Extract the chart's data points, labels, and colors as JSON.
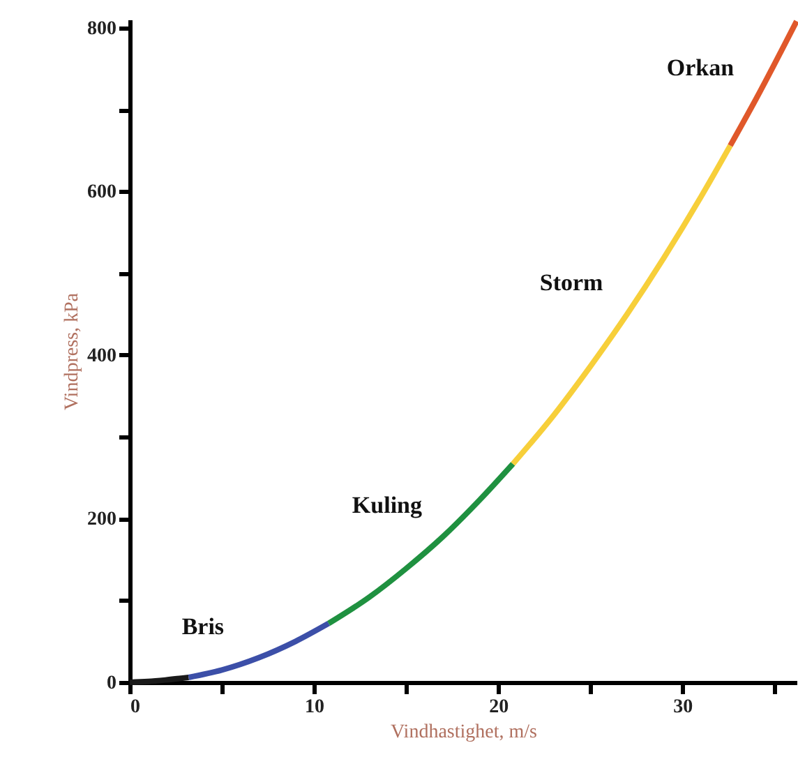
{
  "chart_data": {
    "type": "line",
    "xlabel": "Vindhastighet, m/s",
    "ylabel": "Vindpress, kPa",
    "xlim": [
      0,
      36.2
    ],
    "ylim": [
      0,
      810
    ],
    "xticks": [
      0,
      {
        "value": 5,
        "label": null
      },
      10,
      {
        "value": 15,
        "label": null
      },
      20,
      {
        "value": 25,
        "label": null
      },
      30,
      {
        "value": 35,
        "label": null
      }
    ],
    "yticks": [
      0,
      {
        "value": 100,
        "label": null
      },
      200,
      {
        "value": 300,
        "label": null
      },
      400,
      {
        "value": 500,
        "label": null
      },
      600,
      {
        "value": 700,
        "label": null
      },
      800
    ],
    "grid": false,
    "marker": "none",
    "line_style": "solid",
    "series": [
      {
        "color": "#1a1a1a",
        "x": [
          0,
          1,
          2,
          3.2
        ],
        "values": [
          0,
          1,
          3,
          6
        ]
      },
      {
        "name": "Bris",
        "color": "#3c4fa8",
        "x": [
          3.2,
          5,
          7,
          9,
          10.8
        ],
        "values": [
          6,
          15,
          30,
          50,
          72
        ]
      },
      {
        "name": "Kuling",
        "color": "#1f9140",
        "x": [
          10.8,
          13,
          15,
          17,
          19,
          20.8
        ],
        "values": [
          72,
          104,
          139,
          178,
          223,
          267
        ]
      },
      {
        "name": "Storm",
        "color": "#f7cf3a",
        "x": [
          20.8,
          23,
          25,
          27,
          29,
          31,
          32.6
        ],
        "values": [
          267,
          326,
          386,
          450,
          519,
          593,
          656
        ]
      },
      {
        "name": "Orkan",
        "color": "#e0582a",
        "x": [
          32.6,
          34,
          36.2
        ],
        "values": [
          656,
          713,
          808
        ]
      }
    ]
  }
}
